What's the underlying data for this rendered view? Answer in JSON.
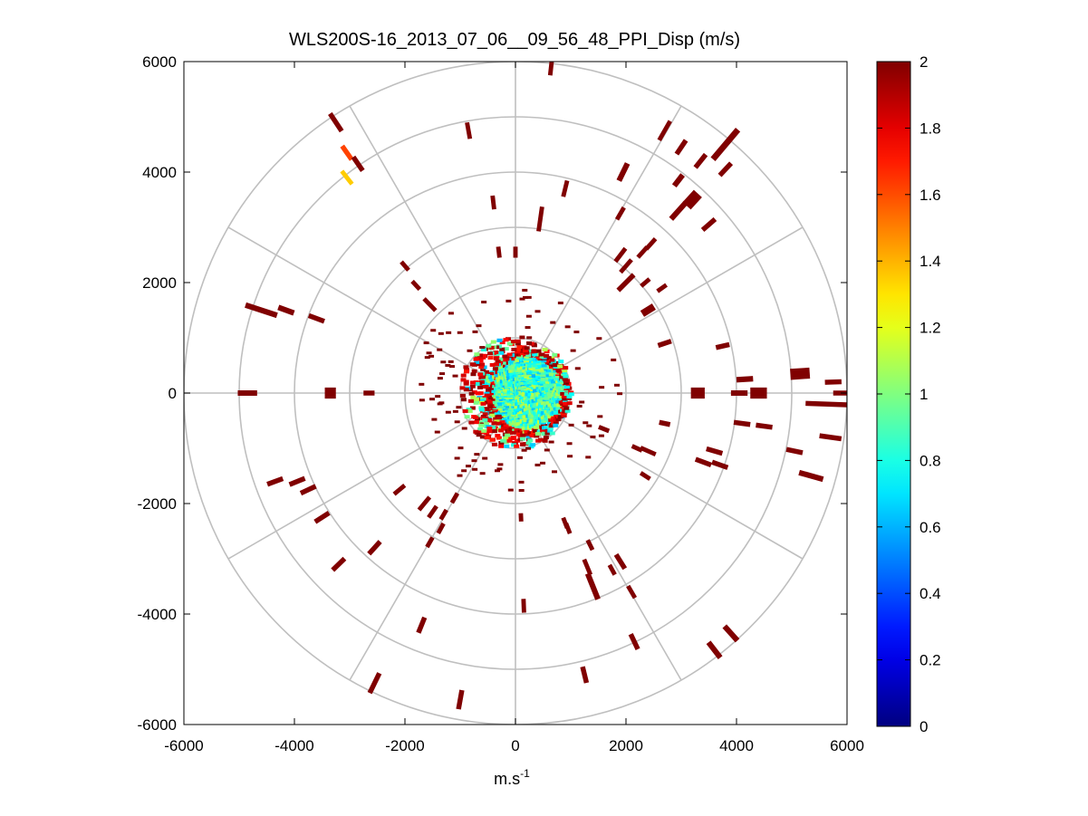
{
  "chart_data": {
    "type": "heatmap",
    "subtype": "polar-ppi",
    "title": "WLS200S-16_2013_07_06__09_56_48_PPI_Disp (m/s)",
    "xlabel": "m.s",
    "xlabel_superscript": "-1",
    "ylabel": "",
    "xlim": [
      -6000,
      6000
    ],
    "ylim": [
      -6000,
      6000
    ],
    "xticks": [
      -6000,
      -4000,
      -2000,
      0,
      2000,
      4000,
      6000
    ],
    "yticks": [
      -6000,
      -4000,
      -2000,
      0,
      2000,
      4000,
      6000
    ],
    "xtick_labels": [
      "-6000",
      "-4000",
      "-2000",
      "0",
      "2000",
      "4000",
      "6000"
    ],
    "ytick_labels": [
      "-6000",
      "-4000",
      "-2000",
      "0",
      "2000",
      "4000",
      "6000"
    ],
    "range_rings": [
      1000,
      2000,
      3000,
      4000,
      5000,
      6000
    ],
    "spoke_step_deg": 30,
    "colorbar": {
      "colormap": "jet",
      "range": [
        0,
        2
      ],
      "ticks": [
        0,
        0.2,
        0.4,
        0.6,
        0.8,
        1,
        1.2,
        1.4,
        1.6,
        1.8,
        2
      ],
      "tick_labels": [
        "0",
        "0.2",
        "0.4",
        "0.6",
        "0.8",
        "1",
        "1.2",
        "1.4",
        "1.6",
        "1.8",
        "2"
      ]
    },
    "near_field": {
      "description": "dense returns within ~1000 m, values mostly 0.7-1.1 m/s",
      "radius": 1000,
      "value_range": [
        0.6,
        1.15
      ],
      "edge_value": 2
    },
    "segments": [
      {
        "x": 650,
        "y": 5950,
        "len": 400,
        "w": 80,
        "v": 2
      },
      {
        "x": -3250,
        "y": 4900,
        "len": 380,
        "w": 90,
        "v": 2
      },
      {
        "x": -850,
        "y": 4750,
        "len": 300,
        "w": 80,
        "v": 2
      },
      {
        "x": -3050,
        "y": 4350,
        "len": 300,
        "w": 90,
        "v": 1.62
      },
      {
        "x": -2850,
        "y": 4150,
        "len": 300,
        "w": 90,
        "v": 2
      },
      {
        "x": -3050,
        "y": 3900,
        "len": 300,
        "w": 80,
        "v": 1.35
      },
      {
        "x": 2700,
        "y": 4750,
        "len": 400,
        "w": 80,
        "v": 2
      },
      {
        "x": 3000,
        "y": 4450,
        "len": 300,
        "w": 90,
        "v": 2
      },
      {
        "x": 3350,
        "y": 4200,
        "len": 300,
        "w": 90,
        "v": 2
      },
      {
        "x": 3800,
        "y": 4500,
        "len": 700,
        "w": 110,
        "v": 2
      },
      {
        "x": 3800,
        "y": 4050,
        "len": 300,
        "w": 90,
        "v": 2
      },
      {
        "x": 1950,
        "y": 4000,
        "len": 350,
        "w": 100,
        "v": 2
      },
      {
        "x": 2950,
        "y": 3850,
        "len": 250,
        "w": 100,
        "v": 2
      },
      {
        "x": 3200,
        "y": 3500,
        "len": 300,
        "w": 200,
        "v": 2
      },
      {
        "x": 2950,
        "y": 3300,
        "len": 400,
        "w": 100,
        "v": 2
      },
      {
        "x": 3500,
        "y": 3050,
        "len": 300,
        "w": 90,
        "v": 2
      },
      {
        "x": 900,
        "y": 3700,
        "len": 300,
        "w": 80,
        "v": 2
      },
      {
        "x": -400,
        "y": 3450,
        "len": 250,
        "w": 80,
        "v": 2
      },
      {
        "x": 450,
        "y": 3150,
        "len": 450,
        "w": 80,
        "v": 2
      },
      {
        "x": 1900,
        "y": 3250,
        "len": 250,
        "w": 80,
        "v": 2
      },
      {
        "x": 2450,
        "y": 2700,
        "len": 250,
        "w": 80,
        "v": 2
      },
      {
        "x": 2300,
        "y": 2550,
        "len": 250,
        "w": 80,
        "v": 2
      },
      {
        "x": 2000,
        "y": 2300,
        "len": 300,
        "w": 80,
        "v": 2
      },
      {
        "x": 1900,
        "y": 2500,
        "len": 300,
        "w": 80,
        "v": 2
      },
      {
        "x": 2000,
        "y": 2000,
        "len": 400,
        "w": 90,
        "v": 2
      },
      {
        "x": 2350,
        "y": 2000,
        "len": 200,
        "w": 80,
        "v": 2
      },
      {
        "x": 2650,
        "y": 1900,
        "len": 200,
        "w": 80,
        "v": 2
      },
      {
        "x": 2400,
        "y": 1500,
        "len": 250,
        "w": 130,
        "v": 2
      },
      {
        "x": -300,
        "y": 2550,
        "len": 200,
        "w": 80,
        "v": 2
      },
      {
        "x": 0,
        "y": 2550,
        "len": 200,
        "w": 80,
        "v": 2
      },
      {
        "x": -2000,
        "y": 2300,
        "len": 200,
        "w": 80,
        "v": 2
      },
      {
        "x": -1800,
        "y": 1950,
        "len": 200,
        "w": 80,
        "v": 2
      },
      {
        "x": -1550,
        "y": 1600,
        "len": 300,
        "w": 80,
        "v": 2
      },
      {
        "x": -4600,
        "y": 1500,
        "len": 600,
        "w": 100,
        "v": 2
      },
      {
        "x": -4150,
        "y": 1500,
        "len": 300,
        "w": 100,
        "v": 2
      },
      {
        "x": -3600,
        "y": 1350,
        "len": 300,
        "w": 90,
        "v": 2
      },
      {
        "x": -4850,
        "y": 0,
        "len": 350,
        "w": 100,
        "v": 2
      },
      {
        "x": -3350,
        "y": 0,
        "len": 200,
        "w": 200,
        "v": 2
      },
      {
        "x": -2650,
        "y": 0,
        "len": 200,
        "w": 90,
        "v": 2
      },
      {
        "x": 2700,
        "y": 900,
        "len": 250,
        "w": 90,
        "v": 2
      },
      {
        "x": 3750,
        "y": 850,
        "len": 250,
        "w": 90,
        "v": 2
      },
      {
        "x": 3300,
        "y": 0,
        "len": 250,
        "w": 200,
        "v": 2
      },
      {
        "x": 4150,
        "y": 250,
        "len": 300,
        "w": 100,
        "v": 2
      },
      {
        "x": 4400,
        "y": 0,
        "len": 300,
        "w": 200,
        "v": 2
      },
      {
        "x": 4050,
        "y": 0,
        "len": 300,
        "w": 100,
        "v": 2
      },
      {
        "x": 5150,
        "y": 350,
        "len": 350,
        "w": 200,
        "v": 2
      },
      {
        "x": 5750,
        "y": 200,
        "len": 300,
        "w": 90,
        "v": 2
      },
      {
        "x": 5650,
        "y": -200,
        "len": 800,
        "w": 90,
        "v": 2
      },
      {
        "x": 5950,
        "y": 0,
        "len": 400,
        "w": 90,
        "v": 2
      },
      {
        "x": 5700,
        "y": -800,
        "len": 400,
        "w": 90,
        "v": 2
      },
      {
        "x": 4100,
        "y": -550,
        "len": 300,
        "w": 90,
        "v": 2
      },
      {
        "x": 4500,
        "y": -600,
        "len": 300,
        "w": 90,
        "v": 2
      },
      {
        "x": 5050,
        "y": -1050,
        "len": 300,
        "w": 90,
        "v": 2
      },
      {
        "x": 2700,
        "y": -550,
        "len": 200,
        "w": 90,
        "v": 2
      },
      {
        "x": 1600,
        "y": -650,
        "len": 200,
        "w": 80,
        "v": 2
      },
      {
        "x": 3600,
        "y": -1050,
        "len": 300,
        "w": 90,
        "v": 2
      },
      {
        "x": 3400,
        "y": -1250,
        "len": 300,
        "w": 90,
        "v": 2
      },
      {
        "x": 3700,
        "y": -1300,
        "len": 300,
        "w": 90,
        "v": 2
      },
      {
        "x": 2200,
        "y": -1000,
        "len": 200,
        "w": 80,
        "v": 2
      },
      {
        "x": 2400,
        "y": -1050,
        "len": 300,
        "w": 80,
        "v": 2
      },
      {
        "x": 2350,
        "y": -1500,
        "len": 200,
        "w": 80,
        "v": 2
      },
      {
        "x": 5350,
        "y": -1500,
        "len": 450,
        "w": 100,
        "v": 2
      },
      {
        "x": -4350,
        "y": -1600,
        "len": 300,
        "w": 90,
        "v": 2
      },
      {
        "x": -3950,
        "y": -1600,
        "len": 300,
        "w": 90,
        "v": 2
      },
      {
        "x": -3750,
        "y": -1750,
        "len": 300,
        "w": 90,
        "v": 2
      },
      {
        "x": -3500,
        "y": -2250,
        "len": 300,
        "w": 90,
        "v": 2
      },
      {
        "x": -2100,
        "y": -1750,
        "len": 250,
        "w": 80,
        "v": 2
      },
      {
        "x": -1650,
        "y": -2000,
        "len": 300,
        "w": 80,
        "v": 2
      },
      {
        "x": -1500,
        "y": -2150,
        "len": 250,
        "w": 80,
        "v": 2
      },
      {
        "x": -1300,
        "y": -2200,
        "len": 200,
        "w": 80,
        "v": 2
      },
      {
        "x": -1100,
        "y": -1900,
        "len": 200,
        "w": 80,
        "v": 2
      },
      {
        "x": -1350,
        "y": -2450,
        "len": 200,
        "w": 80,
        "v": 2
      },
      {
        "x": -1550,
        "y": -2700,
        "len": 200,
        "w": 80,
        "v": 2
      },
      {
        "x": -2550,
        "y": -2800,
        "len": 300,
        "w": 90,
        "v": 2
      },
      {
        "x": -3200,
        "y": -3100,
        "len": 300,
        "w": 90,
        "v": 2
      },
      {
        "x": 100,
        "y": -2250,
        "len": 150,
        "w": 80,
        "v": 2
      },
      {
        "x": 950,
        "y": -2450,
        "len": 200,
        "w": 80,
        "v": 2
      },
      {
        "x": 900,
        "y": -2350,
        "len": 200,
        "w": 80,
        "v": 2
      },
      {
        "x": 1350,
        "y": -2750,
        "len": 200,
        "w": 80,
        "v": 2
      },
      {
        "x": 1300,
        "y": -3150,
        "len": 300,
        "w": 80,
        "v": 2
      },
      {
        "x": 1900,
        "y": -3050,
        "len": 300,
        "w": 90,
        "v": 2
      },
      {
        "x": 1750,
        "y": -3200,
        "len": 200,
        "w": 80,
        "v": 2
      },
      {
        "x": 1400,
        "y": -3500,
        "len": 500,
        "w": 100,
        "v": 2
      },
      {
        "x": 2100,
        "y": -3600,
        "len": 250,
        "w": 80,
        "v": 2
      },
      {
        "x": 150,
        "y": -3850,
        "len": 250,
        "w": 80,
        "v": 2
      },
      {
        "x": -1700,
        "y": -4200,
        "len": 300,
        "w": 90,
        "v": 2
      },
      {
        "x": 2150,
        "y": -4500,
        "len": 300,
        "w": 90,
        "v": 2
      },
      {
        "x": 3900,
        "y": -4350,
        "len": 350,
        "w": 100,
        "v": 2
      },
      {
        "x": 3600,
        "y": -4650,
        "len": 350,
        "w": 100,
        "v": 2
      },
      {
        "x": 1250,
        "y": -5100,
        "len": 300,
        "w": 90,
        "v": 2
      },
      {
        "x": -2550,
        "y": -5250,
        "len": 400,
        "w": 90,
        "v": 2
      },
      {
        "x": -1000,
        "y": -5550,
        "len": 350,
        "w": 90,
        "v": 2
      }
    ]
  }
}
